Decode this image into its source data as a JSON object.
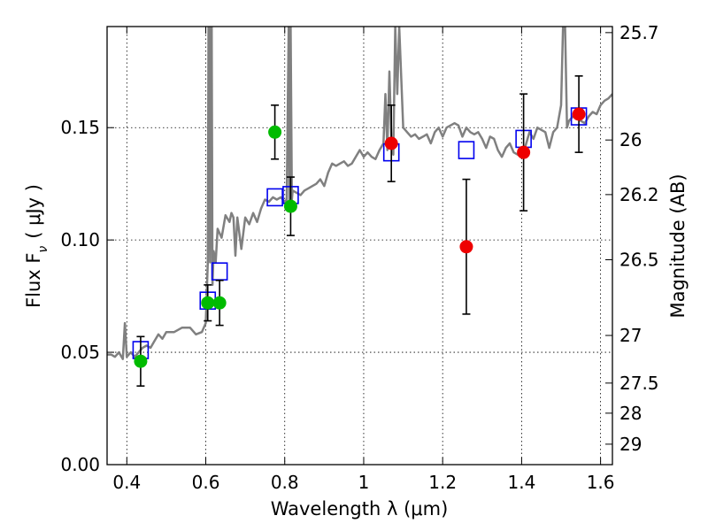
{
  "chart_data": {
    "type": "scatter",
    "xlabel": "Wavelength  λ (μm)",
    "ylabel_left": "Flux  F",
    "ylabel_left_sub": "ν",
    "ylabel_left_tail": "( μJy )",
    "ylabel_right": "Magnitude (AB)",
    "xlim": [
      0.35,
      1.63
    ],
    "ylim": [
      0.0,
      0.195
    ],
    "x_ticks": [
      0.4,
      0.6,
      0.8,
      1.0,
      1.2,
      1.4,
      1.6
    ],
    "x_tick_labels": [
      "0.4",
      "0.6",
      "0.8",
      "1",
      "1.2",
      "1.4",
      "1.6"
    ],
    "y_ticks": [
      0.0,
      0.05,
      0.1,
      0.15
    ],
    "y_tick_labels": [
      "0.00",
      "0.05",
      "0.10",
      "0.15"
    ],
    "right_ticks": [
      {
        "label": "25.7",
        "flux": 0.1923
      },
      {
        "label": "26",
        "flux": 0.1445
      },
      {
        "label": "26.2",
        "flux": 0.1202
      },
      {
        "label": "26.5",
        "flux": 0.0912
      },
      {
        "label": "27",
        "flux": 0.0575
      },
      {
        "label": "27.5",
        "flux": 0.0363
      },
      {
        "label": "28",
        "flux": 0.0229
      },
      {
        "label": "29",
        "flux": 0.0091
      }
    ],
    "grid": true,
    "grid_style": "dotted",
    "colors": {
      "spectrum": "#808080",
      "model_box": "#0000ee",
      "green": "#00bb00",
      "red": "#ee0000",
      "errorbar": "#000000"
    },
    "series": [
      {
        "kind": "line",
        "points": [
          [
            0.35,
            0.049
          ],
          [
            0.36,
            0.049
          ],
          [
            0.37,
            0.048
          ],
          [
            0.38,
            0.05
          ],
          [
            0.39,
            0.047
          ],
          [
            0.395,
            0.063
          ],
          [
            0.4,
            0.048
          ],
          [
            0.41,
            0.05
          ],
          [
            0.42,
            0.048
          ],
          [
            0.43,
            0.05
          ],
          [
            0.44,
            0.052
          ],
          [
            0.45,
            0.053
          ],
          [
            0.46,
            0.052
          ],
          [
            0.47,
            0.055
          ],
          [
            0.48,
            0.058
          ],
          [
            0.49,
            0.056
          ],
          [
            0.5,
            0.059
          ],
          [
            0.52,
            0.059
          ],
          [
            0.54,
            0.061
          ],
          [
            0.56,
            0.061
          ],
          [
            0.575,
            0.058
          ],
          [
            0.59,
            0.059
          ],
          [
            0.6,
            0.063
          ],
          [
            0.605,
            0.09
          ],
          [
            0.607,
            0.195
          ],
          [
            0.609,
            0.195
          ],
          [
            0.611,
            0.09
          ],
          [
            0.613,
            0.195
          ],
          [
            0.615,
            0.195
          ],
          [
            0.617,
            0.08
          ],
          [
            0.62,
            0.095
          ],
          [
            0.625,
            0.09
          ],
          [
            0.63,
            0.105
          ],
          [
            0.64,
            0.101
          ],
          [
            0.65,
            0.111
          ],
          [
            0.66,
            0.108
          ],
          [
            0.665,
            0.112
          ],
          [
            0.67,
            0.11
          ],
          [
            0.675,
            0.093
          ],
          [
            0.68,
            0.11
          ],
          [
            0.69,
            0.096
          ],
          [
            0.7,
            0.11
          ],
          [
            0.71,
            0.107
          ],
          [
            0.72,
            0.112
          ],
          [
            0.73,
            0.108
          ],
          [
            0.74,
            0.114
          ],
          [
            0.75,
            0.118
          ],
          [
            0.76,
            0.117
          ],
          [
            0.77,
            0.119
          ],
          [
            0.78,
            0.118
          ],
          [
            0.79,
            0.119
          ],
          [
            0.8,
            0.117
          ],
          [
            0.805,
            0.118
          ],
          [
            0.81,
            0.195
          ],
          [
            0.812,
            0.118
          ],
          [
            0.815,
            0.195
          ],
          [
            0.818,
            0.118
          ],
          [
            0.82,
            0.122
          ],
          [
            0.83,
            0.121
          ],
          [
            0.84,
            0.12
          ],
          [
            0.85,
            0.122
          ],
          [
            0.86,
            0.123
          ],
          [
            0.87,
            0.124
          ],
          [
            0.88,
            0.125
          ],
          [
            0.89,
            0.127
          ],
          [
            0.9,
            0.124
          ],
          [
            0.91,
            0.13
          ],
          [
            0.92,
            0.134
          ],
          [
            0.93,
            0.133
          ],
          [
            0.94,
            0.134
          ],
          [
            0.95,
            0.135
          ],
          [
            0.96,
            0.133
          ],
          [
            0.97,
            0.134
          ],
          [
            0.98,
            0.137
          ],
          [
            0.99,
            0.14
          ],
          [
            1.0,
            0.137
          ],
          [
            1.01,
            0.139
          ],
          [
            1.02,
            0.137
          ],
          [
            1.03,
            0.136
          ],
          [
            1.04,
            0.14
          ],
          [
            1.05,
            0.143
          ],
          [
            1.055,
            0.165
          ],
          [
            1.06,
            0.14
          ],
          [
            1.065,
            0.175
          ],
          [
            1.07,
            0.145
          ],
          [
            1.075,
            0.138
          ],
          [
            1.08,
            0.195
          ],
          [
            1.085,
            0.165
          ],
          [
            1.09,
            0.195
          ],
          [
            1.1,
            0.15
          ],
          [
            1.11,
            0.148
          ],
          [
            1.12,
            0.146
          ],
          [
            1.13,
            0.147
          ],
          [
            1.14,
            0.145
          ],
          [
            1.15,
            0.146
          ],
          [
            1.16,
            0.147
          ],
          [
            1.17,
            0.143
          ],
          [
            1.18,
            0.148
          ],
          [
            1.19,
            0.15
          ],
          [
            1.2,
            0.146
          ],
          [
            1.21,
            0.15
          ],
          [
            1.22,
            0.151
          ],
          [
            1.23,
            0.152
          ],
          [
            1.24,
            0.151
          ],
          [
            1.25,
            0.146
          ],
          [
            1.26,
            0.15
          ],
          [
            1.27,
            0.148
          ],
          [
            1.28,
            0.147
          ],
          [
            1.29,
            0.148
          ],
          [
            1.3,
            0.145
          ],
          [
            1.31,
            0.141
          ],
          [
            1.32,
            0.146
          ],
          [
            1.33,
            0.145
          ],
          [
            1.34,
            0.14
          ],
          [
            1.35,
            0.137
          ],
          [
            1.36,
            0.141
          ],
          [
            1.37,
            0.143
          ],
          [
            1.38,
            0.139
          ],
          [
            1.39,
            0.138
          ],
          [
            1.4,
            0.137
          ],
          [
            1.41,
            0.142
          ],
          [
            1.42,
            0.148
          ],
          [
            1.43,
            0.145
          ],
          [
            1.44,
            0.15
          ],
          [
            1.45,
            0.149
          ],
          [
            1.46,
            0.148
          ],
          [
            1.47,
            0.141
          ],
          [
            1.48,
            0.148
          ],
          [
            1.49,
            0.15
          ],
          [
            1.5,
            0.16
          ],
          [
            1.505,
            0.195
          ],
          [
            1.51,
            0.195
          ],
          [
            1.515,
            0.15
          ],
          [
            1.52,
            0.153
          ],
          [
            1.53,
            0.155
          ],
          [
            1.54,
            0.154
          ],
          [
            1.55,
            0.153
          ],
          [
            1.56,
            0.152
          ],
          [
            1.57,
            0.155
          ],
          [
            1.58,
            0.157
          ],
          [
            1.59,
            0.156
          ],
          [
            1.6,
            0.16
          ],
          [
            1.61,
            0.162
          ],
          [
            1.62,
            0.163
          ],
          [
            1.63,
            0.165
          ]
        ]
      },
      {
        "kind": "model_boxes",
        "points": [
          [
            0.435,
            0.051
          ],
          [
            0.605,
            0.073
          ],
          [
            0.635,
            0.086
          ],
          [
            0.775,
            0.119
          ],
          [
            0.815,
            0.12
          ],
          [
            1.07,
            0.139
          ],
          [
            1.26,
            0.14
          ],
          [
            1.405,
            0.145
          ],
          [
            1.545,
            0.155
          ]
        ]
      },
      {
        "kind": "green_points",
        "points": [
          {
            "x": 0.435,
            "y": 0.046,
            "err": 0.011
          },
          {
            "x": 0.605,
            "y": 0.072,
            "err": 0.008
          },
          {
            "x": 0.635,
            "y": 0.072,
            "err": 0.01
          },
          {
            "x": 0.775,
            "y": 0.148,
            "err": 0.012
          },
          {
            "x": 0.815,
            "y": 0.115,
            "err": 0.013
          }
        ]
      },
      {
        "kind": "red_points",
        "points": [
          {
            "x": 1.07,
            "y": 0.143,
            "err": 0.017
          },
          {
            "x": 1.26,
            "y": 0.097,
            "err": 0.03
          },
          {
            "x": 1.405,
            "y": 0.139,
            "err": 0.026
          },
          {
            "x": 1.545,
            "y": 0.156,
            "err": 0.017
          }
        ]
      }
    ]
  }
}
